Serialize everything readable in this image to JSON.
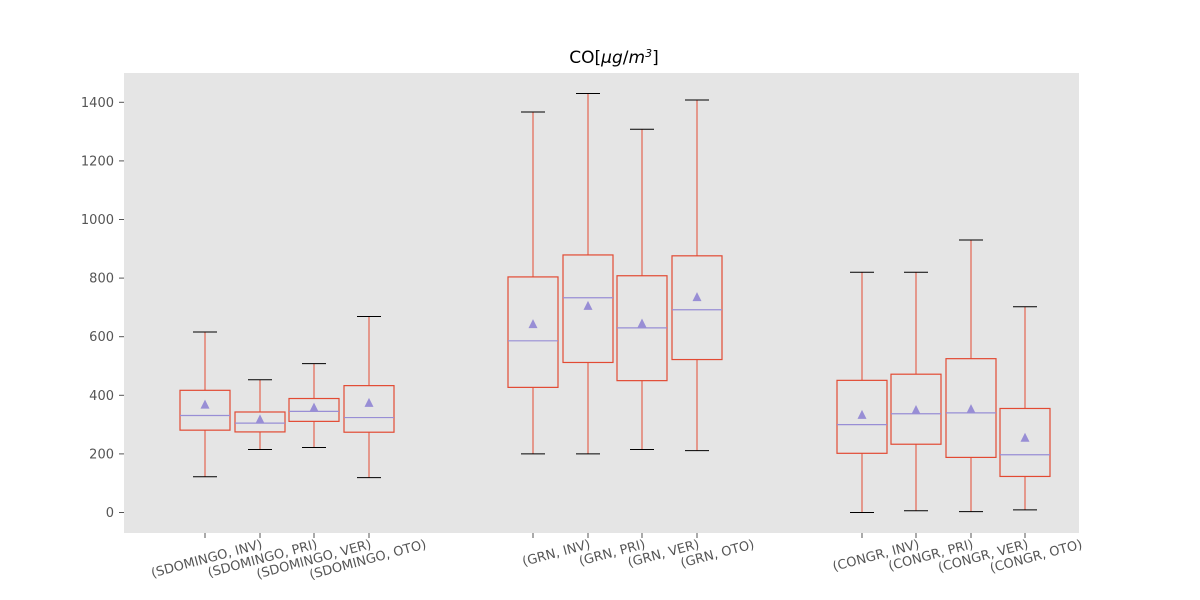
{
  "chart_data": {
    "type": "box",
    "title": "CO[μg/m3]",
    "title_base": "CO[",
    "title_mu": "μ",
    "title_g": "g",
    "title_slash": "/",
    "title_m": "m",
    "title_exp": "3",
    "title_close": "]",
    "ylim": [
      -70,
      1500
    ],
    "yticks": [
      0,
      200,
      400,
      600,
      800,
      1000,
      1200,
      1400
    ],
    "grid": false,
    "colors": {
      "box": "#E24A33",
      "median": "#988ED5",
      "mean": "#988ED5",
      "whisker": "#E24A33",
      "cap": "#000000",
      "background": "#E5E5E5"
    },
    "categories": [
      "(SDOMINGO, INV)",
      "(SDOMINGO, PRI)",
      "(SDOMINGO, VER)",
      "(SDOMINGO, OTO)",
      "(GRN, INV)",
      "(GRN, PRI)",
      "(GRN, VER)",
      "(GRN, OTO)",
      "(CONGR, INV)",
      "(CONGR, PRI)",
      "(CONGR, VER)",
      "(CONGR, OTO)"
    ],
    "boxes": [
      {
        "whislo": 122,
        "q1": 281,
        "med": 331,
        "q3": 417,
        "whishi": 616,
        "mean": 368
      },
      {
        "whislo": 215,
        "q1": 275,
        "med": 305,
        "q3": 343,
        "whishi": 453,
        "mean": 318
      },
      {
        "whislo": 222,
        "q1": 311,
        "med": 345,
        "q3": 389,
        "whishi": 508,
        "mean": 358
      },
      {
        "whislo": 119,
        "q1": 274,
        "med": 324,
        "q3": 433,
        "whishi": 669,
        "mean": 374
      },
      {
        "whislo": 200,
        "q1": 427,
        "med": 586,
        "q3": 804,
        "whishi": 1367,
        "mean": 643
      },
      {
        "whislo": 200,
        "q1": 512,
        "med": 733,
        "q3": 879,
        "whishi": 1430,
        "mean": 705
      },
      {
        "whislo": 215,
        "q1": 450,
        "med": 630,
        "q3": 808,
        "whishi": 1308,
        "mean": 645
      },
      {
        "whislo": 211,
        "q1": 522,
        "med": 692,
        "q3": 876,
        "whishi": 1408,
        "mean": 735
      },
      {
        "whislo": 0,
        "q1": 202,
        "med": 300,
        "q3": 451,
        "whishi": 820,
        "mean": 333
      },
      {
        "whislo": 6,
        "q1": 233,
        "med": 337,
        "q3": 472,
        "whishi": 820,
        "mean": 350
      },
      {
        "whislo": 3,
        "q1": 188,
        "med": 340,
        "q3": 525,
        "whishi": 930,
        "mean": 353
      },
      {
        "whislo": 9,
        "q1": 123,
        "med": 197,
        "q3": 355,
        "whishi": 702,
        "mean": 255
      }
    ]
  }
}
